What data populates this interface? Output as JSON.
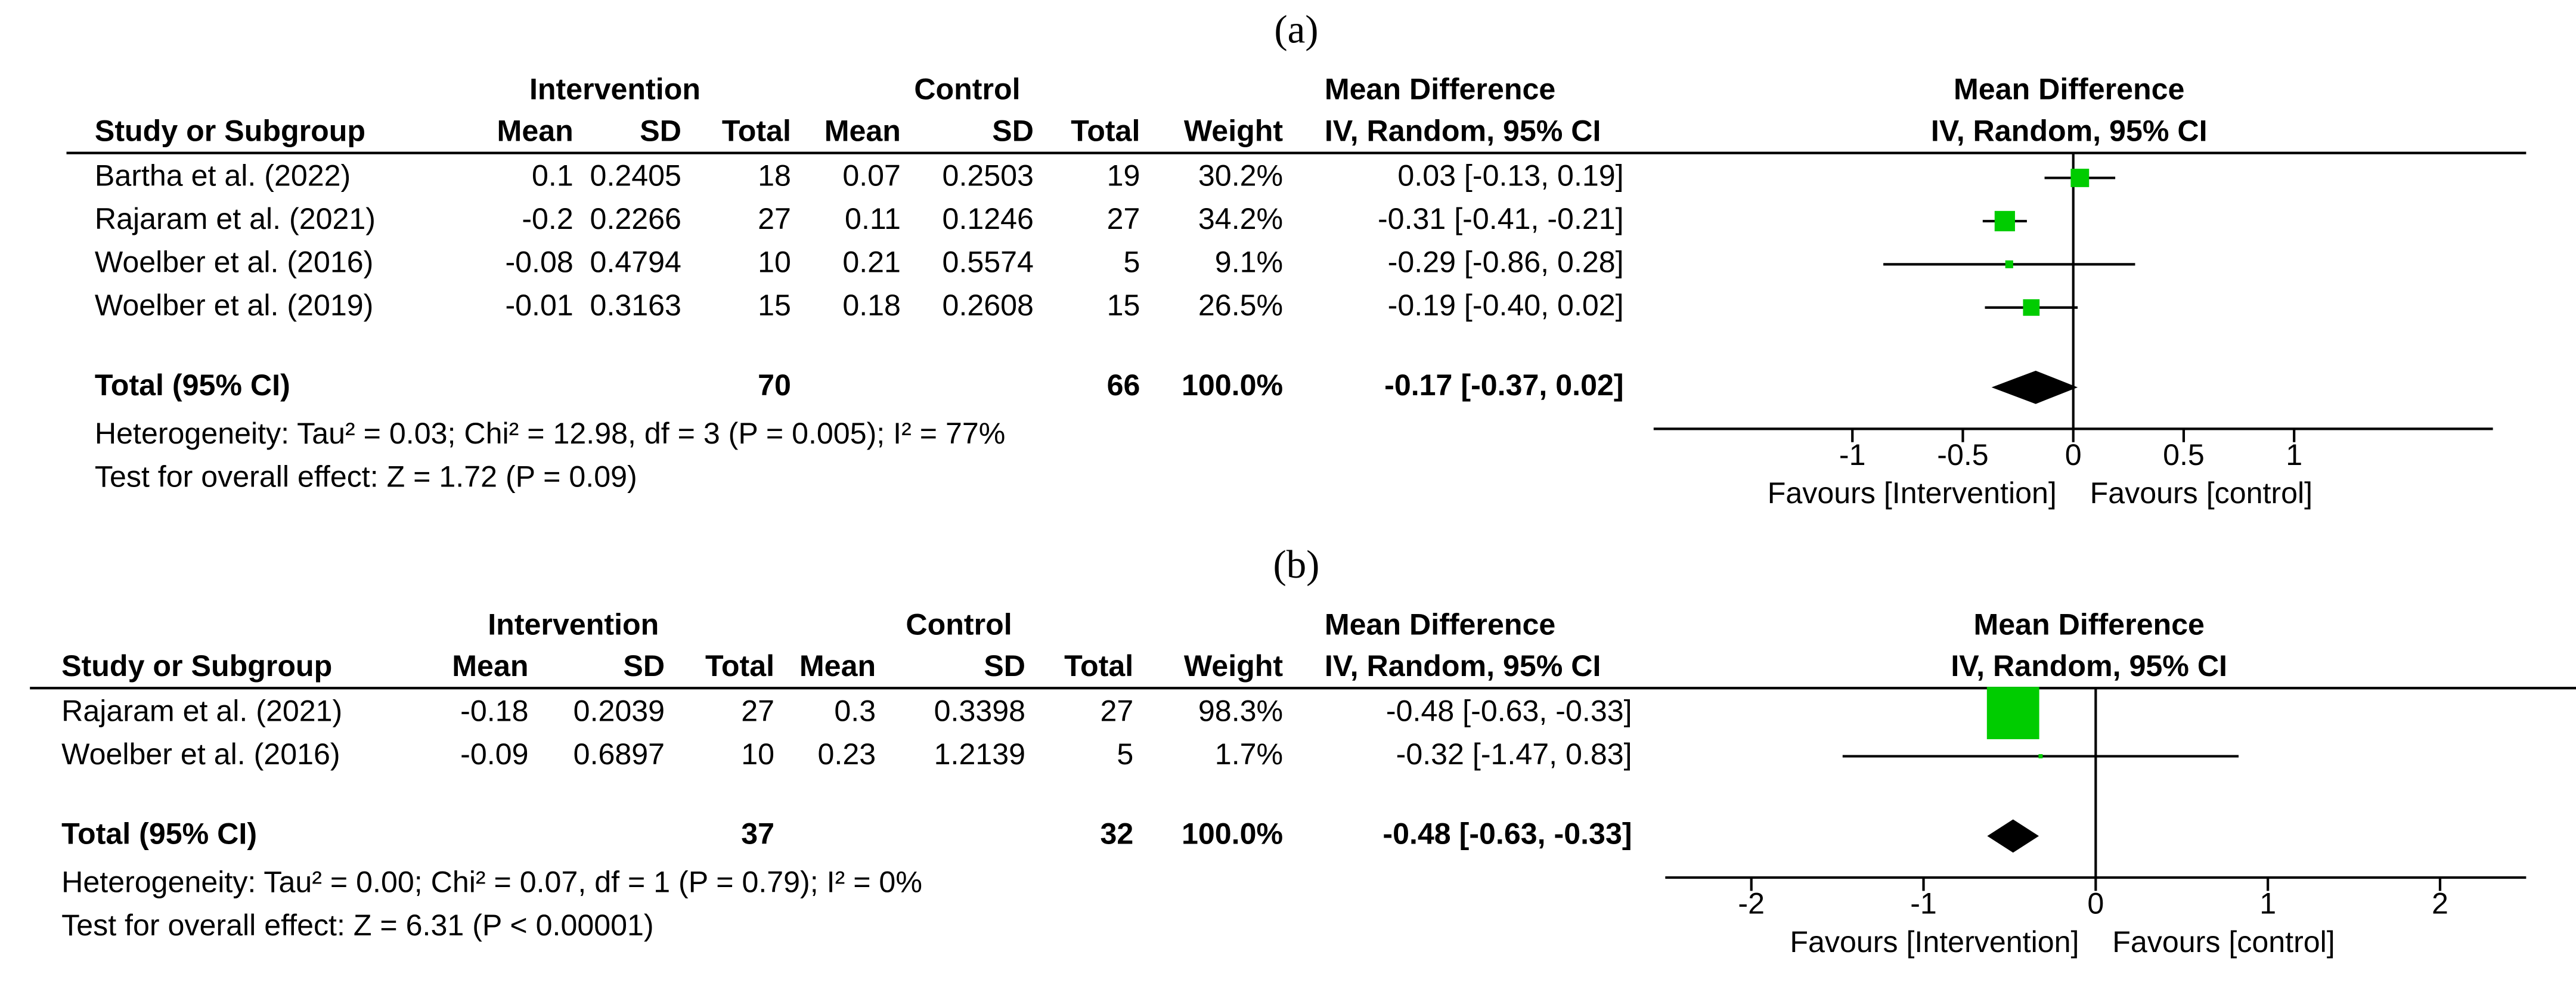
{
  "chart_data": [
    {
      "type": "forest",
      "label": "(a)",
      "intervention_header": "Intervention",
      "control_header": "Control",
      "md_header": "Mean Difference",
      "plot_header": "Mean Difference",
      "plot_subheader": "IV, Random, 95% CI",
      "columns": [
        "Study or Subgroup",
        "Mean",
        "SD",
        "Total",
        "Mean",
        "SD",
        "Total",
        "Weight",
        "IV, Random, 95% CI"
      ],
      "color": "#00cc00",
      "studies": [
        {
          "name": "Bartha et al. (2022)",
          "int_mean": 0.1,
          "int_sd": 0.2405,
          "int_total": 18,
          "ctl_mean": 0.07,
          "ctl_sd": 0.2503,
          "ctl_total": 19,
          "weight": 30.2,
          "weight_label": "30.2%",
          "md": 0.03,
          "ci_low": -0.13,
          "ci_high": 0.19,
          "ci_label": "0.03 [-0.13, 0.19]"
        },
        {
          "name": "Rajaram et al. (2021)",
          "int_mean": -0.2,
          "int_sd": 0.2266,
          "int_total": 27,
          "ctl_mean": 0.11,
          "ctl_sd": 0.1246,
          "ctl_total": 27,
          "weight": 34.2,
          "weight_label": "34.2%",
          "md": -0.31,
          "ci_low": -0.41,
          "ci_high": -0.21,
          "ci_label": "-0.31 [-0.41, -0.21]"
        },
        {
          "name": "Woelber et al. (2016)",
          "int_mean": -0.08,
          "int_sd": 0.4794,
          "int_total": 10,
          "ctl_mean": 0.21,
          "ctl_sd": 0.5574,
          "ctl_total": 5,
          "weight": 9.1,
          "weight_label": "9.1%",
          "md": -0.29,
          "ci_low": -0.86,
          "ci_high": 0.28,
          "ci_label": "-0.29 [-0.86, 0.28]"
        },
        {
          "name": "Woelber et al. (2019)",
          "int_mean": -0.01,
          "int_sd": 0.3163,
          "int_total": 15,
          "ctl_mean": 0.18,
          "ctl_sd": 0.2608,
          "ctl_total": 15,
          "weight": 26.5,
          "weight_label": "26.5%",
          "md": -0.19,
          "ci_low": -0.4,
          "ci_high": 0.02,
          "ci_label": "-0.19 [-0.40, 0.02]"
        }
      ],
      "total": {
        "name": "Total (95% CI)",
        "int_total": 70,
        "ctl_total": 66,
        "weight": 100.0,
        "weight_label": "100.0%",
        "md": -0.17,
        "ci_low": -0.37,
        "ci_high": 0.02,
        "ci_label": "-0.17 [-0.37, 0.02]"
      },
      "heterogeneity": "Heterogeneity: Tau² = 0.03; Chi² = 12.98, df = 3 (P = 0.005); I² = 77%",
      "overall_effect": "Test for overall effect: Z = 1.72 (P = 0.09)",
      "xlim": [
        -1.9,
        1.9
      ],
      "xticks": [
        -1,
        -0.5,
        0,
        0.5,
        1
      ],
      "favours": [
        "Favours [Intervention]",
        "Favours [control]"
      ]
    },
    {
      "type": "forest",
      "label": "(b)",
      "intervention_header": "Intervention",
      "control_header": "Control",
      "md_header": "Mean Difference",
      "plot_header": "Mean Difference",
      "plot_subheader": "IV, Random, 95% CI",
      "columns": [
        "Study or Subgroup",
        "Mean",
        "SD",
        "Total",
        "Mean",
        "SD",
        "Total",
        "Weight",
        "IV, Random, 95% CI"
      ],
      "color": "#00cc00",
      "studies": [
        {
          "name": "Rajaram et al. (2021)",
          "int_mean": -0.18,
          "int_sd": 0.2039,
          "int_total": 27,
          "ctl_mean": 0.3,
          "ctl_sd": 0.3398,
          "ctl_total": 27,
          "weight": 98.3,
          "weight_label": "98.3%",
          "md": -0.48,
          "ci_low": -0.63,
          "ci_high": -0.33,
          "ci_label": "-0.48 [-0.63, -0.33]"
        },
        {
          "name": "Woelber et al. (2016)",
          "int_mean": -0.09,
          "int_sd": 0.6897,
          "int_total": 10,
          "ctl_mean": 0.23,
          "ctl_sd": 1.2139,
          "ctl_total": 5,
          "weight": 1.7,
          "weight_label": "1.7%",
          "md": -0.32,
          "ci_low": -1.47,
          "ci_high": 0.83,
          "ci_label": "-0.32 [-1.47, 0.83]"
        }
      ],
      "total": {
        "name": "Total (95% CI)",
        "int_total": 37,
        "ctl_total": 32,
        "weight": 100.0,
        "weight_label": "100.0%",
        "md": -0.48,
        "ci_low": -0.63,
        "ci_high": -0.33,
        "ci_label": "-0.48 [-0.63, -0.33]"
      },
      "heterogeneity": "Heterogeneity: Tau² = 0.00; Chi² = 0.07, df = 1 (P = 0.79); I² = 0%",
      "overall_effect": "Test for overall effect: Z = 6.31 (P < 0.00001)",
      "xlim": [
        -2.5,
        2.5
      ],
      "xticks": [
        -2,
        -1,
        0,
        1,
        2
      ],
      "favours": [
        "Favours [Intervention]",
        "Favours [control]"
      ]
    }
  ]
}
